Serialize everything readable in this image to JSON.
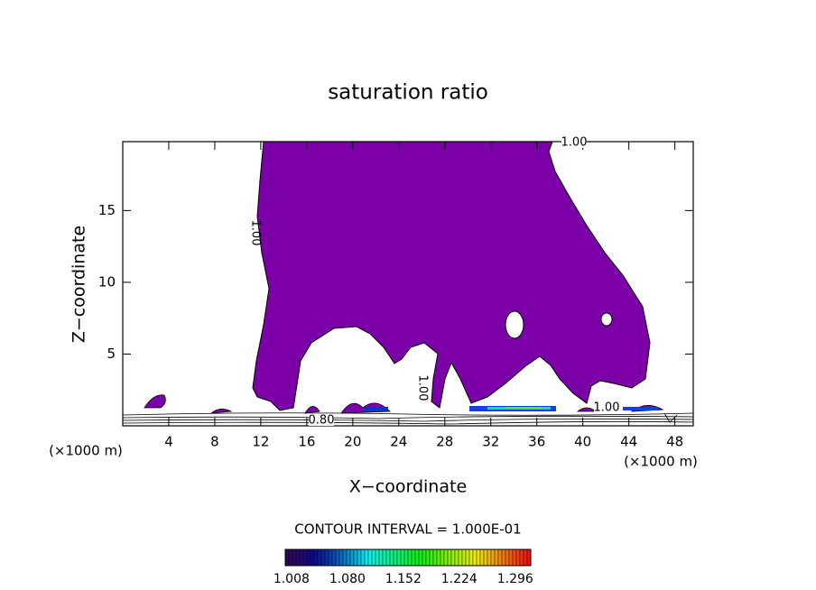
{
  "chart_data": {
    "type": "contour",
    "title": "saturation ratio",
    "x_label": "X−coordinate",
    "y_label": "Z−coordinate",
    "x_unit": "(×1000 m)",
    "xlim": [
      0,
      49.6
    ],
    "ylim": [
      0,
      19.8
    ],
    "xticks": [
      4,
      8,
      12,
      16,
      20,
      24,
      28,
      32,
      36,
      40,
      44,
      48
    ],
    "yticks": [
      5,
      10,
      15
    ],
    "fill_color": "#7b00a8",
    "contour_labels": [
      "1.00",
      "1.00",
      "1.00",
      "1.00",
      "0.80"
    ],
    "contour_interval_label": "CONTOUR INTERVAL = 1.000E-01",
    "colorbar": {
      "lim": [
        1.0,
        1.316
      ],
      "ticks": [
        1.008,
        {
          "value": 1.08,
          "label": "1.080"
        },
        1.152,
        1.224,
        1.296
      ]
    }
  }
}
